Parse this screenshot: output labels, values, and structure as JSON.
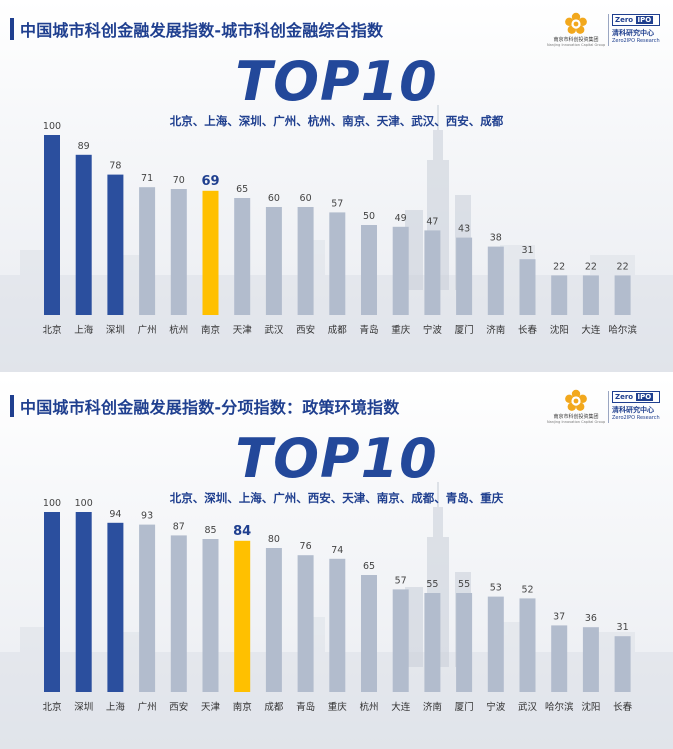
{
  "logos": {
    "left": {
      "name": "南京市科创投资集团",
      "en": "Nanjing Innovation Capital Group"
    },
    "right": {
      "box_left": "Zero",
      "box_right": "IPO",
      "name": "清科研究中心",
      "en": "Zero2IPO Research"
    }
  },
  "colors": {
    "navy": "#2b4f9e",
    "gray": "#b2bccd",
    "highlight": "#ffc000",
    "title": "#1f3f8f"
  },
  "chart_data": [
    {
      "type": "bar",
      "title": "中国城市科创金融发展指数-城市科创金融综合指数",
      "subtitle": "TOP10",
      "top10_list": "北京、上海、深圳、广州、杭州、南京、天津、武汉、西安、成都",
      "categories": [
        "北京",
        "上海",
        "深圳",
        "广州",
        "杭州",
        "南京",
        "天津",
        "武汉",
        "西安",
        "成都",
        "青岛",
        "重庆",
        "宁波",
        "厦门",
        "济南",
        "长春",
        "沈阳",
        "大连",
        "哈尔滨"
      ],
      "values": [
        100,
        89,
        78,
        71,
        70,
        69,
        65,
        60,
        60,
        57,
        50,
        49,
        47,
        43,
        38,
        31,
        22,
        22,
        22
      ],
      "highlight": "南京",
      "top_navy_count": 3,
      "ylim": [
        0,
        100
      ]
    },
    {
      "type": "bar",
      "title": "中国城市科创金融发展指数-分项指数：政策环境指数",
      "subtitle": "TOP10",
      "top10_list": "北京、深圳、上海、广州、西安、天津、南京、成都、青岛、重庆",
      "categories": [
        "北京",
        "深圳",
        "上海",
        "广州",
        "西安",
        "天津",
        "南京",
        "成都",
        "青岛",
        "重庆",
        "杭州",
        "大连",
        "济南",
        "厦门",
        "宁波",
        "武汉",
        "哈尔滨",
        "沈阳",
        "长春"
      ],
      "values": [
        100,
        100,
        94,
        93,
        87,
        85,
        84,
        80,
        76,
        74,
        65,
        57,
        55,
        55,
        53,
        52,
        37,
        36,
        31
      ],
      "highlight": "南京",
      "top_navy_count": 3,
      "ylim": [
        0,
        100
      ]
    }
  ]
}
